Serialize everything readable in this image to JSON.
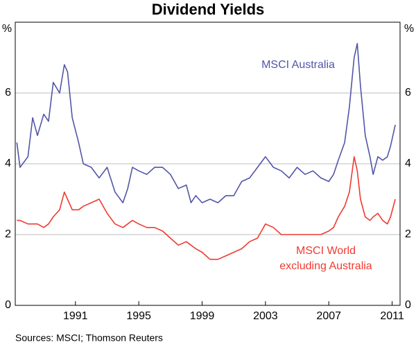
{
  "chart_data": {
    "type": "line",
    "title": "Dividend Yields",
    "y_unit": "%",
    "y2_unit": "%",
    "source": "Sources: MSCI; Thomson Reuters",
    "x": [
      1987.3,
      1987.5,
      1988.0,
      1988.3,
      1988.6,
      1989.0,
      1989.3,
      1989.6,
      1990.0,
      1990.3,
      1990.5,
      1990.8,
      1991.2,
      1991.5,
      1992.0,
      1992.5,
      1993.0,
      1993.5,
      1994.0,
      1994.3,
      1994.6,
      1995.0,
      1995.5,
      1996.0,
      1996.5,
      1997.0,
      1997.5,
      1998.0,
      1998.3,
      1998.6,
      1999.0,
      1999.5,
      2000.0,
      2000.5,
      2001.0,
      2001.5,
      2002.0,
      2002.5,
      2003.0,
      2003.5,
      2004.0,
      2004.5,
      2005.0,
      2005.5,
      2006.0,
      2006.5,
      2007.0,
      2007.3,
      2007.6,
      2008.0,
      2008.3,
      2008.6,
      2008.8,
      2009.0,
      2009.3,
      2009.6,
      2009.8,
      2010.1,
      2010.4,
      2010.7,
      2010.9,
      2011.2
    ],
    "series": [
      {
        "name": [
          "MSCI Australia"
        ],
        "color": "#5155a6",
        "values": [
          4.6,
          3.9,
          4.2,
          5.3,
          4.8,
          5.4,
          5.2,
          6.3,
          6.0,
          6.8,
          6.6,
          5.3,
          4.6,
          4.0,
          3.9,
          3.6,
          3.9,
          3.2,
          2.9,
          3.3,
          3.9,
          3.8,
          3.7,
          3.9,
          3.9,
          3.7,
          3.3,
          3.4,
          2.9,
          3.1,
          2.9,
          3.0,
          2.9,
          3.1,
          3.1,
          3.5,
          3.6,
          3.9,
          4.2,
          3.9,
          3.8,
          3.6,
          3.9,
          3.7,
          3.8,
          3.6,
          3.5,
          3.7,
          4.1,
          4.6,
          5.6,
          7.0,
          7.4,
          6.2,
          4.8,
          4.2,
          3.7,
          4.2,
          4.1,
          4.2,
          4.5,
          5.1
        ]
      },
      {
        "name": [
          "MSCI World",
          "excluding Australia"
        ],
        "color": "#ee3a2f",
        "values": [
          2.4,
          2.4,
          2.3,
          2.3,
          2.3,
          2.2,
          2.3,
          2.5,
          2.7,
          3.2,
          3.0,
          2.7,
          2.7,
          2.8,
          2.9,
          3.0,
          2.6,
          2.3,
          2.2,
          2.3,
          2.4,
          2.3,
          2.2,
          2.2,
          2.1,
          1.9,
          1.7,
          1.8,
          1.7,
          1.6,
          1.5,
          1.3,
          1.3,
          1.4,
          1.5,
          1.6,
          1.8,
          1.9,
          2.3,
          2.2,
          2.0,
          2.0,
          2.0,
          2.0,
          2.0,
          2.0,
          2.1,
          2.2,
          2.5,
          2.8,
          3.2,
          4.2,
          3.8,
          3.0,
          2.5,
          2.4,
          2.5,
          2.6,
          2.4,
          2.3,
          2.5,
          3.0
        ]
      }
    ],
    "xlim": [
      1987.2,
      2011.5
    ],
    "xticks": [
      1991,
      1995,
      1999,
      2003,
      2007,
      2011
    ],
    "ylim": [
      0,
      8
    ],
    "yticks": [
      0,
      2,
      4,
      6
    ],
    "y2lim": [
      0,
      8
    ],
    "y2ticks": [
      0,
      2,
      4,
      6
    ],
    "grid": true
  }
}
